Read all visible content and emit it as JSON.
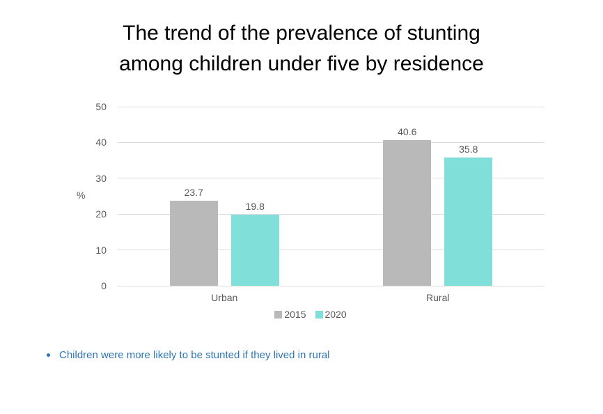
{
  "title_lines": [
    "The trend of the prevalence of stunting",
    "among children under five by residence"
  ],
  "note": {
    "text": "Children were more likely to be stunted if they lived in rural"
  },
  "chart_data": {
    "type": "bar",
    "title": "The trend of the prevalence of stunting among children under five by residence",
    "categories": [
      "Urban",
      "Rural"
    ],
    "series": [
      {
        "name": "2015",
        "color": "#B9B9B9",
        "values": [
          23.7,
          40.6
        ]
      },
      {
        "name": "2020",
        "color": "#80DFD9",
        "values": [
          19.8,
          35.8
        ]
      }
    ],
    "data_labels": [
      [
        "23.7",
        "40.6"
      ],
      [
        "19.8",
        "35.8"
      ]
    ],
    "xlabel": "",
    "ylabel": "%",
    "ylim": [
      0,
      50
    ],
    "yticks": [
      0,
      10,
      20,
      30,
      40,
      50
    ],
    "grid": true,
    "legend_position": "bottom"
  },
  "colors": {
    "background": "#FFFFFF",
    "title_text": "#000000",
    "axis_text": "#595959",
    "gridline": "#DCDCDC",
    "note_text": "#2E75B6",
    "series_2015": "#B9B9B9",
    "series_2020": "#80DFD9"
  }
}
